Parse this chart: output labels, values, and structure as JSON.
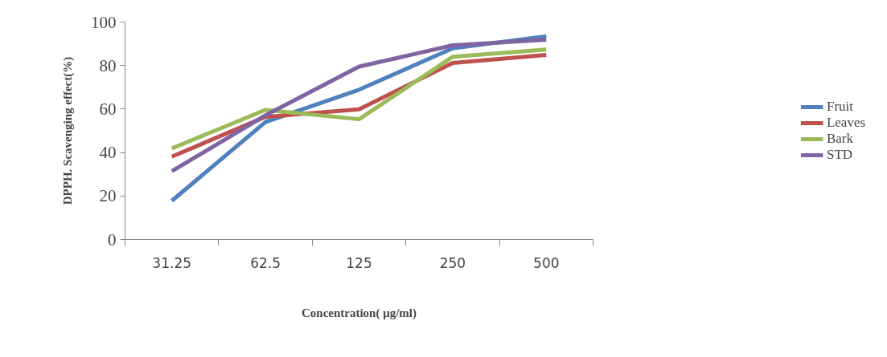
{
  "chart_data": {
    "type": "line",
    "xlabel": "Concentration( μg/ml)",
    "ylabel": "DPPH. Scavenging effect(%)",
    "categories": [
      "31.25",
      "62.5",
      "125",
      "250",
      "500"
    ],
    "series": [
      {
        "name": "Fruit",
        "color": "#4f81bd",
        "values": [
          17.8,
          54,
          68.9,
          87.9,
          93.5
        ]
      },
      {
        "name": "Leaves",
        "color": "#c0504d",
        "values": [
          38.1,
          56.4,
          59.9,
          81.2,
          84.9
        ]
      },
      {
        "name": "Bark",
        "color": "#9bbb59",
        "values": [
          41.9,
          59.6,
          55.3,
          84,
          87.4
        ]
      },
      {
        "name": "STD",
        "color": "#8064a2",
        "values": [
          31.4,
          57.1,
          79.5,
          89.3,
          91.9
        ]
      }
    ],
    "ylim": [
      0,
      100
    ],
    "yticks": [
      0,
      20,
      40,
      60,
      80,
      100
    ],
    "grid": false,
    "legend": "right",
    "marker": "none",
    "line_style": "solid"
  }
}
